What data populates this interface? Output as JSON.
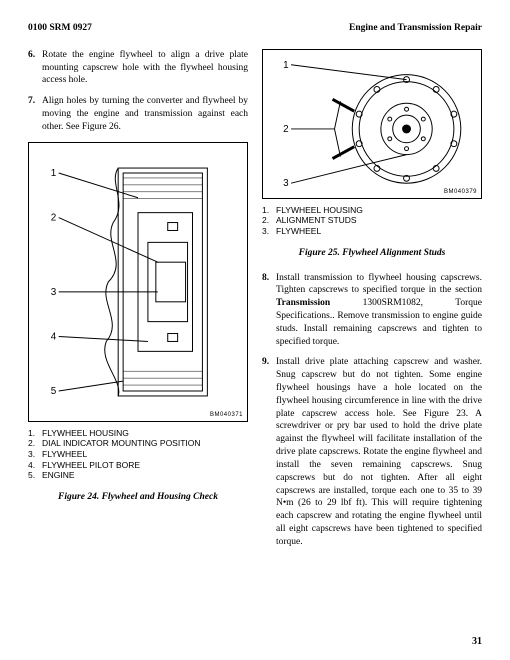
{
  "header": {
    "left": "0100 SRM 0927",
    "right": "Engine and Transmission Repair"
  },
  "left": {
    "steps": [
      {
        "n": "6.",
        "t": "Rotate the engine flywheel to align a drive plate mounting capscrew hole with the flywheel housing access hole."
      },
      {
        "n": "7.",
        "t": "Align holes by turning the converter and flywheel by moving the engine and transmission against each other. See Figure 26."
      }
    ],
    "fig": {
      "id": "BM040371",
      "legend": [
        {
          "n": "1.",
          "t": "FLYWHEEL HOUSING"
        },
        {
          "n": "2.",
          "t": "DIAL INDICATOR MOUNTING POSITION"
        },
        {
          "n": "3.",
          "t": "FLYWHEEL"
        },
        {
          "n": "4.",
          "t": "FLYWHEEL PILOT BORE"
        },
        {
          "n": "5.",
          "t": "ENGINE"
        }
      ],
      "caption": "Figure 24. Flywheel and Housing Check"
    }
  },
  "right": {
    "fig": {
      "id": "BM040379",
      "legend": [
        {
          "n": "1.",
          "t": "FLYWHEEL HOUSING"
        },
        {
          "n": "2.",
          "t": "ALIGNMENT STUDS"
        },
        {
          "n": "3.",
          "t": "FLYWHEEL"
        }
      ],
      "caption": "Figure 25. Flywheel Alignment Studs"
    },
    "steps": [
      {
        "n": "8.",
        "t": "Install transmission to flywheel housing capscrews. Tighten capscrews to specified torque in the section <b>Transmission</b> 1300SRM1082, Torque Specifications.. Remove transmission to engine guide studs. Install remaining capscrews and tighten to specified torque."
      },
      {
        "n": "9.",
        "t": "Install drive plate attaching capscrew and washer. Snug capscrew but do not tighten. Some engine flywheel housings have a hole located on the flywheel housing circumference in line with the drive plate capscrew access hole. See Figure 23. A screwdriver or pry bar used to hold the drive plate against the flywheel will facilitate installation of the drive plate capscrews. Rotate the engine flywheel and install the seven remaining capscrews. Snug capscrews but do not tighten. After all eight capscrews are installed, torque each one to 35 to 39 N•m (26 to 29 lbf ft). This will require tightening each capscrew and rotating the engine flywheel until all eight capscrews have been tightened to specified torque."
      }
    ]
  },
  "page": "31"
}
